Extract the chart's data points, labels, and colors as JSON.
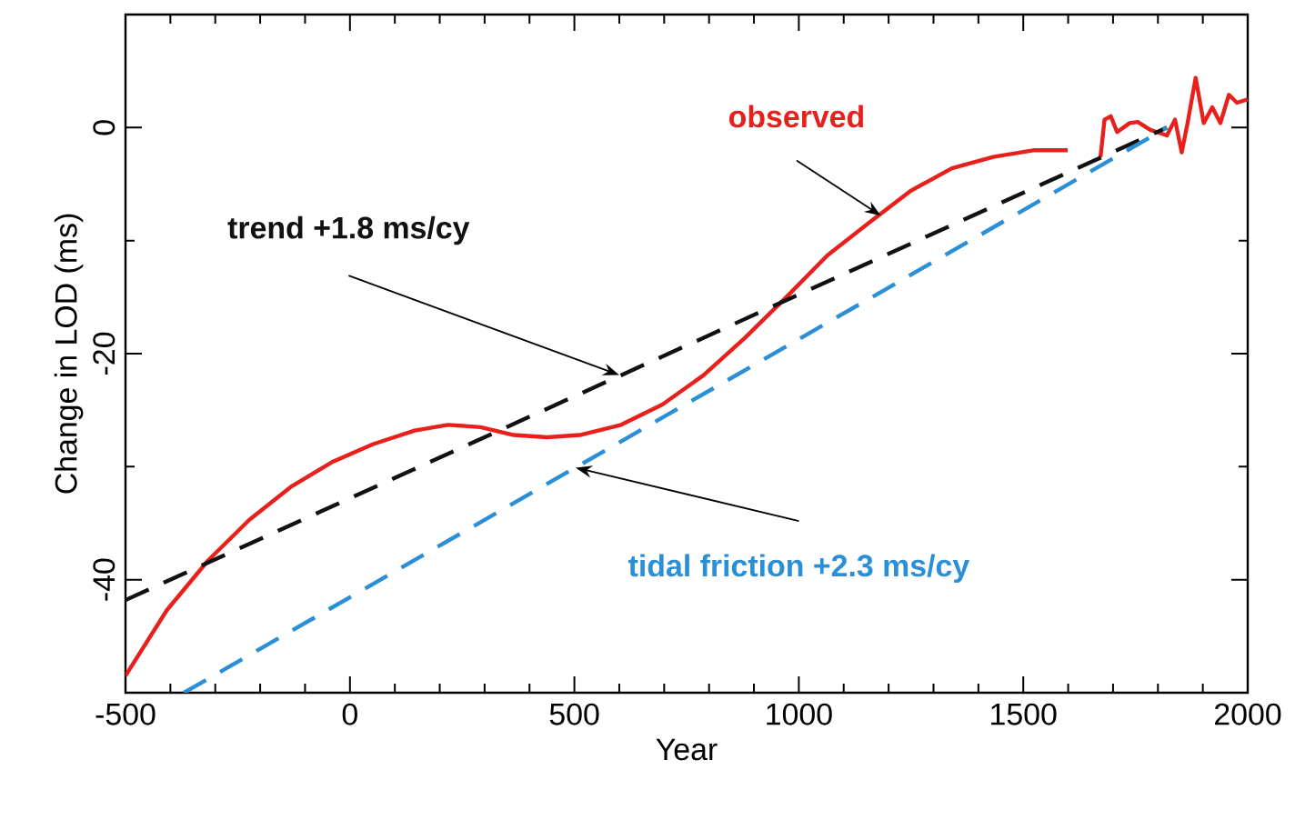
{
  "chart_data": {
    "type": "line",
    "xlabel": "Year",
    "ylabel": "Change in LOD (ms)",
    "xlim": [
      -500,
      2000
    ],
    "ylim": [
      -50,
      10
    ],
    "xticks": [
      -500,
      {
        "value": -400,
        "label": null
      },
      {
        "value": -300,
        "label": null
      },
      {
        "value": -200,
        "label": null
      },
      {
        "value": -100,
        "label": null
      },
      0,
      {
        "value": 100,
        "label": null
      },
      {
        "value": 200,
        "label": null
      },
      {
        "value": 300,
        "label": null
      },
      {
        "value": 400,
        "label": null
      },
      500,
      {
        "value": 600,
        "label": null
      },
      {
        "value": 700,
        "label": null
      },
      {
        "value": 800,
        "label": null
      },
      {
        "value": 900,
        "label": null
      },
      1000,
      {
        "value": 1100,
        "label": null
      },
      {
        "value": 1200,
        "label": null
      },
      {
        "value": 1300,
        "label": null
      },
      {
        "value": 1400,
        "label": null
      },
      1500,
      {
        "value": 1600,
        "label": null
      },
      {
        "value": 1700,
        "label": null
      },
      {
        "value": 1800,
        "label": null
      },
      {
        "value": 1900,
        "label": null
      },
      2000
    ],
    "yticks": [
      {
        "value": -50,
        "label": null
      },
      -40,
      {
        "value": -30,
        "label": null
      },
      -20,
      {
        "value": -10,
        "label": null
      },
      0,
      {
        "value": 10,
        "label": null
      }
    ],
    "grid": false,
    "marker": "none",
    "series": [
      {
        "color": "#e8201c",
        "line_style": "solid",
        "x": [
          -500,
          -408,
          -316,
          -224,
          -132,
          -40,
          52,
          144,
          218,
          291,
          365,
          439,
          512,
          604,
          696,
          788,
          880,
          972,
          1064,
          1157,
          1249,
          1341,
          1433,
          1525,
          1599,
          1640,
          1672,
          1681,
          1695,
          1709,
          1737,
          1755,
          1783,
          1820,
          1838,
          1853,
          1866,
          1884,
          1902,
          1921,
          1939,
          1958,
          1976,
          2000
        ],
        "values": [
          -48.5,
          -42.7,
          -38.3,
          -34.7,
          -31.8,
          -29.6,
          -28.0,
          -26.8,
          -26.3,
          -26.5,
          -27.2,
          -27.4,
          -27.2,
          -26.3,
          -24.5,
          -21.9,
          -18.6,
          -15.0,
          -11.3,
          -8.4,
          -5.6,
          -3.6,
          -2.6,
          -2.0,
          -2.0,
          null,
          -2.6,
          0.7,
          1.0,
          -0.4,
          0.4,
          0.5,
          -0.2,
          -0.7,
          0.7,
          -2.2,
          0.4,
          4.4,
          0.4,
          1.8,
          0.4,
          2.9,
          2.2,
          2.5
        ]
      },
      {
        "color": "#111111",
        "line_style": "dashed",
        "x": [
          -500,
          1820
        ],
        "values": [
          -41.8,
          0
        ]
      },
      {
        "color": "#2a8fd6",
        "line_style": "dashed",
        "x": [
          -370,
          1820
        ],
        "values": [
          -50,
          0
        ]
      }
    ],
    "annotations": [
      {
        "text": "observed",
        "x": 1183,
        "y": -7.8
      },
      {
        "text": "trend +1.8 ms/cy",
        "x": 600,
        "y": -21.9
      },
      {
        "text": "tidal friction +2.3 ms/cy",
        "x": 503,
        "y": -30.1
      }
    ]
  }
}
